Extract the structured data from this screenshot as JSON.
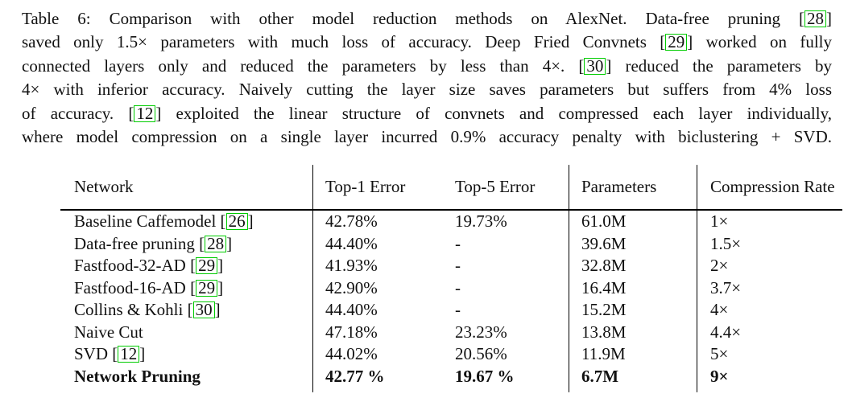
{
  "colors": {
    "citation_box": "#00cc00",
    "ink": "#111111",
    "rule": "#000000"
  },
  "caption": {
    "lines": [
      {
        "segments": [
          {
            "text": "Table 6: Comparison with other model reduction methods on AlexNet. Data-free pruning ["
          },
          {
            "cite": "28"
          },
          {
            "text": "]"
          }
        ]
      },
      {
        "segments": [
          {
            "text": "saved only 1.5× parameters with much loss of accuracy. Deep Fried Convnets ["
          },
          {
            "cite": "29"
          },
          {
            "text": "] worked on fully"
          }
        ]
      },
      {
        "segments": [
          {
            "text": "connected layers only and reduced the parameters by less than 4×. ["
          },
          {
            "cite": "30"
          },
          {
            "text": "] reduced the parameters by"
          }
        ]
      },
      {
        "segments": [
          {
            "text": "4× with inferior accuracy. Naively cutting the layer size saves parameters but suffers from 4% loss"
          }
        ]
      },
      {
        "segments": [
          {
            "text": "of accuracy. ["
          },
          {
            "cite": "12"
          },
          {
            "text": "] exploited the linear structure of convnets and compressed each layer individually,"
          }
        ]
      },
      {
        "segments": [
          {
            "text": "where model compression on a single layer incurred 0.9% accuracy penalty with biclustering + SVD."
          }
        ]
      }
    ]
  },
  "table": {
    "columns": [
      {
        "key": "network",
        "label": "Network"
      },
      {
        "key": "top1-error",
        "label": "Top-1 Error"
      },
      {
        "key": "top5-error",
        "label": "Top-5 Error"
      },
      {
        "key": "parameters",
        "label": "Parameters"
      },
      {
        "key": "compression-rate",
        "label": "Compression Rate"
      }
    ],
    "rows": [
      {
        "name": "Baseline Caffemodel",
        "cite": "26",
        "top1": "42.78%",
        "top5": "19.73%",
        "params": "61.0M",
        "rate": "1×",
        "bold": false
      },
      {
        "name": "Data-free pruning",
        "cite": "28",
        "top1": "44.40%",
        "top5": "-",
        "params": "39.6M",
        "rate": "1.5×",
        "bold": false
      },
      {
        "name": "Fastfood-32-AD",
        "cite": "29",
        "top1": "41.93%",
        "top5": "-",
        "params": "32.8M",
        "rate": "2×",
        "bold": false
      },
      {
        "name": "Fastfood-16-AD",
        "cite": "29",
        "top1": "42.90%",
        "top5": "-",
        "params": "16.4M",
        "rate": "3.7×",
        "bold": false
      },
      {
        "name": "Collins & Kohli",
        "cite": "30",
        "top1": "44.40%",
        "top5": "-",
        "params": "15.2M",
        "rate": "4×",
        "bold": false
      },
      {
        "name": "Naive Cut",
        "cite": null,
        "top1": "47.18%",
        "top5": "23.23%",
        "params": "13.8M",
        "rate": "4.4×",
        "bold": false
      },
      {
        "name": "SVD",
        "cite": "12",
        "top1": "44.02%",
        "top5": "20.56%",
        "params": "11.9M",
        "rate": "5×",
        "bold": false
      },
      {
        "name": "Network Pruning",
        "cite": null,
        "top1": "42.77 %",
        "top5": "19.67 %",
        "params": "6.7M",
        "rate": "9×",
        "bold": true
      }
    ]
  }
}
